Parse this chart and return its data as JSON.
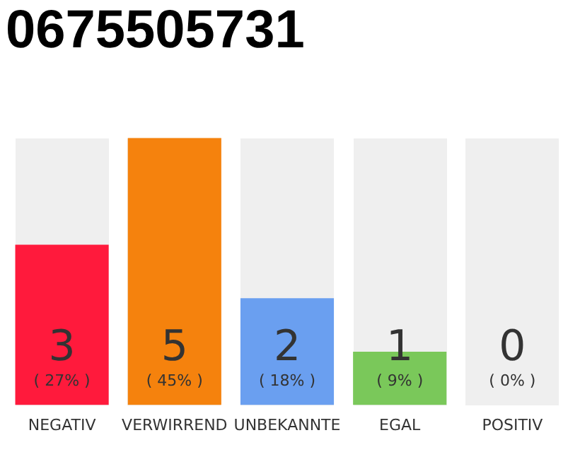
{
  "chart_data": {
    "type": "bar",
    "title": "0675505731",
    "categories": [
      "NEGATIV",
      "VERWIRREND",
      "UNBEKANNTE",
      "EGAL",
      "POSITIV"
    ],
    "values": [
      3,
      5,
      2,
      1,
      0
    ],
    "colors": [
      "#ff1a3c",
      "#f5820d",
      "#6a9ff0",
      "#7ac85a",
      "#d0d0d0"
    ],
    "ylim": [
      0,
      5
    ],
    "data_labels": true,
    "tick_labels": "x",
    "grid": false,
    "legend": false,
    "annotations": [
      "( 27% )",
      "( 45% )",
      "( 18% )",
      "( 9% )",
      "( 0% )"
    ]
  }
}
